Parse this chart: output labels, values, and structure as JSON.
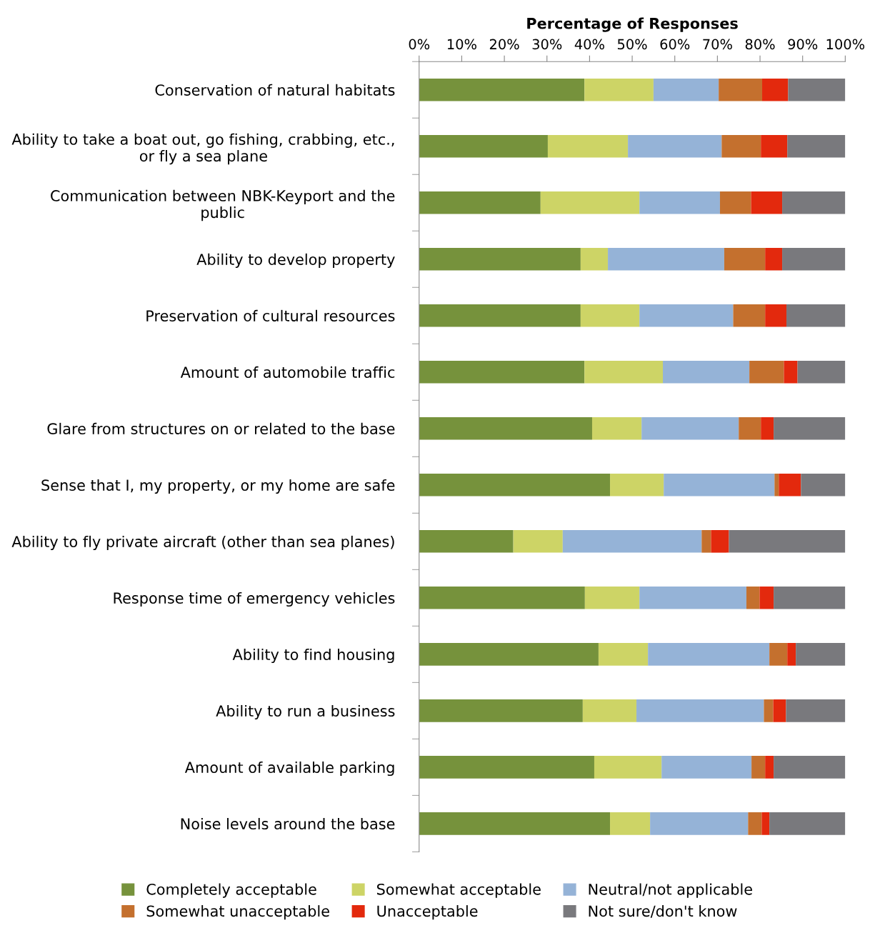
{
  "chart_data": {
    "type": "bar",
    "orientation": "horizontal",
    "stacked": true,
    "xlabel": "Percentage of Responses",
    "categories": [
      "Conservation of natural habitats",
      "Ability to take a boat out, go fishing, crabbing, etc.,\nor fly a sea plane",
      "Communication between NBK-Keyport and the\npublic",
      "Ability to develop property",
      "Preservation of cultural resources",
      "Amount of automobile traffic",
      "Glare from structures on or related to the base",
      "Sense that I, my property, or my home are safe",
      "Ability to fly private aircraft (other than sea planes)",
      "Response time of emergency vehicles",
      "Ability to find housing",
      "Ability to run a business",
      "Amount of available parking",
      "Noise levels around the base"
    ],
    "series": [
      {
        "name": "Completely acceptable",
        "color": "#76923c",
        "values": [
          38.8,
          30.2,
          28.5,
          37.9,
          37.9,
          38.8,
          40.6,
          44.8,
          22.1,
          38.9,
          42.1,
          38.4,
          41.1,
          44.8
        ]
      },
      {
        "name": "Somewhat acceptable",
        "color": "#cdd466",
        "values": [
          16.2,
          18.8,
          23.2,
          6.4,
          13.8,
          18.4,
          11.6,
          12.6,
          11.6,
          12.8,
          11.6,
          12.6,
          15.8,
          9.4
        ]
      },
      {
        "name": "Neutral/not applicable",
        "color": "#95b3d7",
        "values": [
          15.3,
          22.0,
          18.9,
          27.3,
          22.0,
          20.3,
          22.8,
          26.0,
          32.6,
          25.1,
          28.5,
          29.9,
          21.1,
          23.0
        ]
      },
      {
        "name": "Somewhat unacceptable",
        "color": "#c4702e",
        "values": [
          10.2,
          9.2,
          7.3,
          9.6,
          7.5,
          8.1,
          5.2,
          1.0,
          2.2,
          3.1,
          4.2,
          2.2,
          3.2,
          3.2
        ]
      },
      {
        "name": "Unacceptable",
        "color": "#e3290d",
        "values": [
          6.1,
          6.2,
          7.3,
          4.0,
          5.0,
          3.2,
          3.0,
          5.2,
          4.2,
          3.3,
          2.0,
          3.0,
          2.0,
          1.8
        ]
      },
      {
        "name": "Not sure/don't know",
        "color": "#79797d",
        "values": [
          13.4,
          13.6,
          14.8,
          14.8,
          13.8,
          11.2,
          16.8,
          10.4,
          27.3,
          16.8,
          11.6,
          13.9,
          16.8,
          17.8
        ]
      }
    ],
    "xlim": [
      0,
      100
    ],
    "xticks": [
      {
        "value": 0,
        "label": "0%"
      },
      {
        "value": 10,
        "label": "10%"
      },
      {
        "value": 20,
        "label": "20%"
      },
      {
        "value": 30,
        "label": "30%"
      },
      {
        "value": 40,
        "label": "40%"
      },
      {
        "value": 50,
        "label": "50%"
      },
      {
        "value": 60,
        "label": "60%"
      },
      {
        "value": 70,
        "label": "70%"
      },
      {
        "value": 80,
        "label": "80%"
      },
      {
        "value": 90,
        "label": "90%"
      },
      {
        "value": 100,
        "label": "100%"
      }
    ],
    "grid": false,
    "legend": "bottom"
  }
}
